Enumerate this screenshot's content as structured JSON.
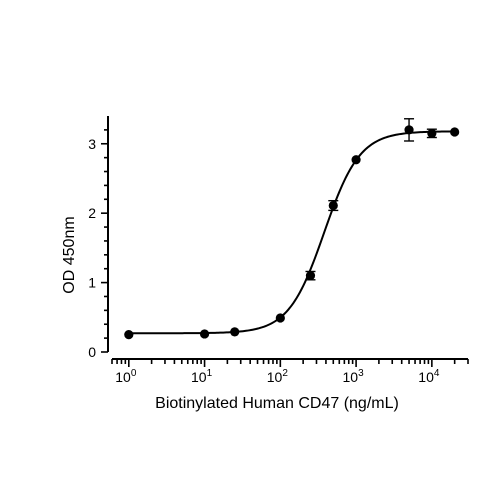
{
  "chart_data": {
    "type": "scatter",
    "title": "",
    "xlabel": "Biotinylated Human CD47 (ng/mL)",
    "ylabel": "OD 450nm",
    "xscale": "log",
    "xlim": [
      0.6,
      30000
    ],
    "ylim": [
      0,
      3.4
    ],
    "x_tick_labels": [
      {
        "value": 1,
        "base": "10",
        "exp": "0"
      },
      {
        "value": 10,
        "base": "10",
        "exp": "1"
      },
      {
        "value": 100,
        "base": "10",
        "exp": "2"
      },
      {
        "value": 1000,
        "base": "10",
        "exp": "3"
      },
      {
        "value": 10000,
        "base": "10",
        "exp": "4"
      }
    ],
    "y_ticks": [
      {
        "value": 0,
        "label": "0"
      },
      {
        "value": 1,
        "label": "1"
      },
      {
        "value": 2,
        "label": "2"
      },
      {
        "value": 3,
        "label": "3"
      }
    ],
    "grid": false,
    "legend": "none",
    "points": [
      {
        "x": 1,
        "y": 0.25,
        "err": 0
      },
      {
        "x": 10,
        "y": 0.26,
        "err": 0
      },
      {
        "x": 25,
        "y": 0.29,
        "err": 0
      },
      {
        "x": 100,
        "y": 0.49,
        "err": 0
      },
      {
        "x": 250,
        "y": 1.1,
        "err": 0.06
      },
      {
        "x": 500,
        "y": 2.11,
        "err": 0.07
      },
      {
        "x": 1000,
        "y": 2.77,
        "err": 0
      },
      {
        "x": 5000,
        "y": 3.2,
        "err": 0.16
      },
      {
        "x": 10000,
        "y": 3.15,
        "err": 0.06
      },
      {
        "x": 20000,
        "y": 3.17,
        "err": 0
      }
    ],
    "fit": {
      "model": "4PL",
      "bottom": 0.27,
      "top": 3.18,
      "ec50": 380,
      "hill": 1.85
    },
    "colors": {
      "marks": "#000000"
    }
  }
}
